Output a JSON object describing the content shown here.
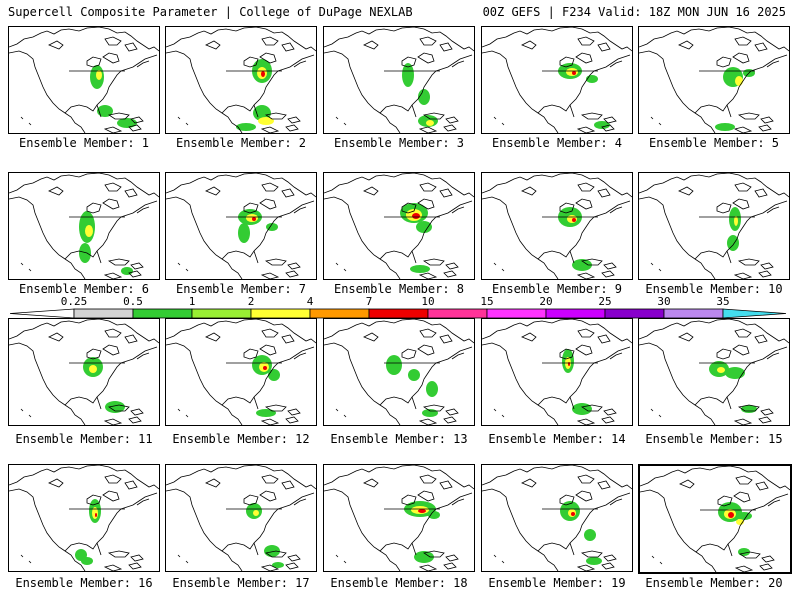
{
  "header": {
    "left_title": "Supercell Composite Parameter | College of DuPage NEXLAB",
    "right_title": "00Z GEFS | F234 Valid: 18Z MON JUN 16 2025"
  },
  "label_prefix": "Ensemble Member: ",
  "members": [
    {
      "label": "Ensemble Member: 1"
    },
    {
      "label": "Ensemble Member: 2"
    },
    {
      "label": "Ensemble Member: 3"
    },
    {
      "label": "Ensemble Member: 4"
    },
    {
      "label": "Ensemble Member: 5"
    },
    {
      "label": "Ensemble Member: 6"
    },
    {
      "label": "Ensemble Member: 7"
    },
    {
      "label": "Ensemble Member: 8"
    },
    {
      "label": "Ensemble Member: 9"
    },
    {
      "label": "Ensemble Member: 10"
    },
    {
      "label": "Ensemble Member: 11"
    },
    {
      "label": "Ensemble Member: 12"
    },
    {
      "label": "Ensemble Member: 13"
    },
    {
      "label": "Ensemble Member: 14"
    },
    {
      "label": "Ensemble Member: 15"
    },
    {
      "label": "Ensemble Member: 16"
    },
    {
      "label": "Ensemble Member: 17"
    },
    {
      "label": "Ensemble Member: 18"
    },
    {
      "label": "Ensemble Member: 19"
    },
    {
      "label": "Ensemble Member: 20"
    }
  ],
  "colorbar": {
    "thresholds": [
      "0.25",
      "0.5",
      "1",
      "2",
      "4",
      "7",
      "10",
      "15",
      "20",
      "25",
      "30",
      "35"
    ],
    "colors": [
      "#d3d3d3",
      "#33cc33",
      "#99ee33",
      "#ffff33",
      "#ff9900",
      "#ee0000",
      "#ff3399",
      "#ff33ff",
      "#cc00ff",
      "#8800cc",
      "#bb88ee",
      "#44ddee"
    ]
  }
}
